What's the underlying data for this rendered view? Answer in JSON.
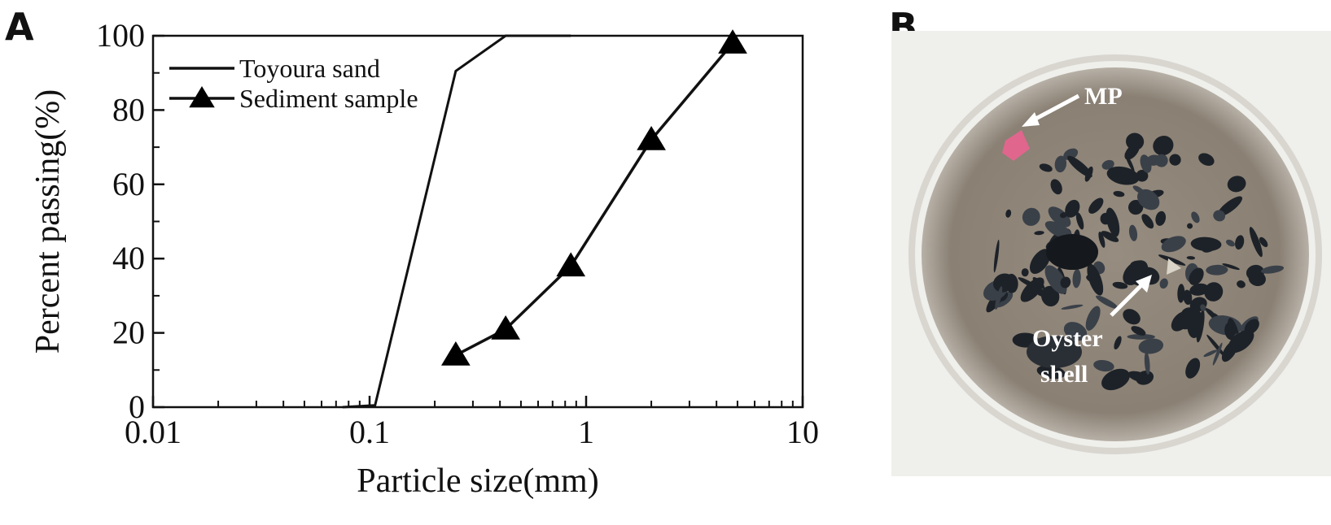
{
  "panels": {
    "a": "A",
    "b": "B"
  },
  "chart_data": {
    "type": "line",
    "xscale": "log",
    "xlim": [
      0.01,
      10
    ],
    "ylim": [
      0,
      100
    ],
    "xticks": [
      0.01,
      0.1,
      1,
      10
    ],
    "xtick_labels": [
      "0.01",
      "0.1",
      "1",
      "10"
    ],
    "yticks": [
      0,
      20,
      40,
      60,
      80,
      100
    ],
    "ytick_labels": [
      "0",
      "20",
      "40",
      "60",
      "80",
      "100"
    ],
    "xlabel": "Particle size(mm)",
    "ylabel": "Percent passing(%)",
    "legend_position": "top-left",
    "grid": false,
    "series": [
      {
        "name": "Toyoura sand",
        "marker": "none",
        "x": [
          0.075,
          0.106,
          0.25,
          0.425,
          0.85
        ],
        "y": [
          0,
          0.5,
          90.5,
          100,
          100
        ]
      },
      {
        "name": "Sediment sample",
        "marker": "triangle",
        "x": [
          0.25,
          0.425,
          0.85,
          2,
          4.75
        ],
        "y": [
          14,
          21,
          38,
          72,
          98
        ]
      }
    ]
  },
  "photo": {
    "labels": {
      "mp": "MP",
      "oyster_line1": "Oyster",
      "oyster_line2": "shell"
    },
    "colors": {
      "background": "#efefeb",
      "dish_rim": "#d8d6cf",
      "sediment": "#8f857a",
      "mp_fragment": "#e0668d",
      "particles": "#1f242a"
    }
  }
}
